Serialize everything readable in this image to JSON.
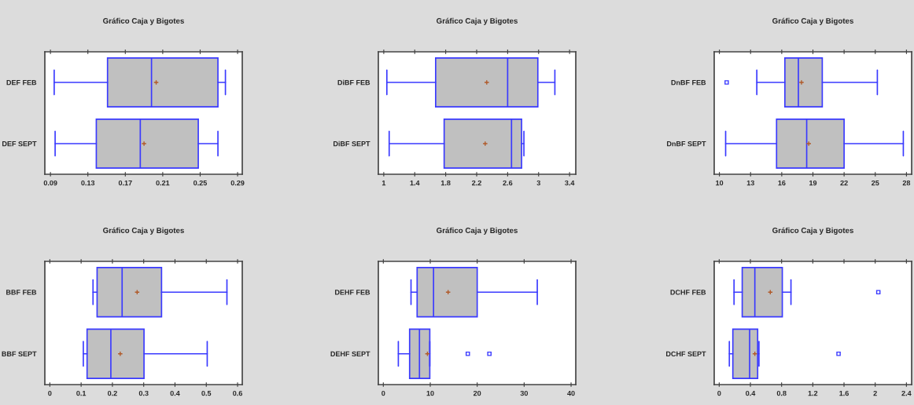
{
  "chart_data": [
    {
      "type": "box",
      "title": "Gráfico Caja y Bigotes",
      "orientation": "horizontal",
      "categories": [
        "DEF FEB",
        "DEF SEPT"
      ],
      "xlim": [
        0.084,
        0.295
      ],
      "xticks": [
        {
          "value": 0.09,
          "label": "0.09"
        },
        {
          "value": 0.13,
          "label": "0.13"
        },
        {
          "value": 0.17,
          "label": "0.17"
        },
        {
          "value": 0.21,
          "label": "0.21"
        },
        {
          "value": 0.25,
          "label": "0.25"
        },
        {
          "value": 0.29,
          "label": "0.29"
        }
      ],
      "series": [
        {
          "color": "#c0c0c0",
          "boxes": [
            {
              "low": 0.094,
              "q1": 0.151,
              "median": 0.198,
              "q3": 0.269,
              "high": 0.277,
              "mean": 0.203
            },
            {
              "low": 0.095,
              "q1": 0.139,
              "median": 0.186,
              "q3": 0.248,
              "high": 0.269,
              "mean": 0.19
            }
          ]
        }
      ]
    },
    {
      "type": "box",
      "title": "Gráfico Caja y Bigotes",
      "orientation": "horizontal",
      "categories": [
        "DiBF FEB",
        "DiBF SEPT"
      ],
      "xlim": [
        0.93,
        3.48
      ],
      "xticks": [
        1,
        1.4,
        1.8,
        2.2,
        2.6,
        3,
        3.4
      ],
      "series": [
        {
          "color": "#c0c0c0",
          "boxes": [
            {
              "low": 1.04,
              "q1": 1.67,
              "median": 2.6,
              "q3": 2.99,
              "high": 3.21,
              "mean": 2.33
            },
            {
              "low": 1.07,
              "q1": 1.78,
              "median": 2.65,
              "q3": 2.78,
              "high": 2.81,
              "mean": 2.31
            }
          ]
        }
      ]
    },
    {
      "type": "box",
      "title": "Gráfico Caja y Bigotes",
      "orientation": "horizontal",
      "categories": [
        "DnBF FEB",
        "DnBF SEPT"
      ],
      "xlim": [
        9.5,
        28.5
      ],
      "xticks": [
        10,
        13,
        16,
        19,
        22,
        25,
        28
      ],
      "series": [
        {
          "color": "#c0c0c0",
          "boxes": [
            {
              "low": 13.6,
              "q1": 16.3,
              "median": 17.6,
              "q3": 19.9,
              "high": 25.2,
              "mean": 17.9,
              "outliers": [
                10.7
              ]
            },
            {
              "low": 10.6,
              "q1": 15.5,
              "median": 18.4,
              "q3": 22.0,
              "high": 27.7,
              "mean": 18.6
            }
          ]
        }
      ]
    },
    {
      "type": "box",
      "title": "Gráfico Caja y Bigotes",
      "orientation": "horizontal",
      "categories": [
        "BBF FEB",
        "BBF SEPT"
      ],
      "xlim": [
        -0.016,
        0.615
      ],
      "xticks": [
        0,
        0.1,
        0.2,
        0.3,
        0.4,
        0.5,
        0.6
      ],
      "series": [
        {
          "color": "#c0c0c0",
          "boxes": [
            {
              "low": 0.138,
              "q1": 0.151,
              "median": 0.231,
              "q3": 0.357,
              "high": 0.566,
              "mean": 0.279
            },
            {
              "low": 0.107,
              "q1": 0.119,
              "median": 0.195,
              "q3": 0.301,
              "high": 0.503,
              "mean": 0.225
            }
          ]
        }
      ]
    },
    {
      "type": "box",
      "title": "Gráfico Caja y Bigotes",
      "orientation": "horizontal",
      "categories": [
        "DEHF FEB",
        "DEHF SEPT"
      ],
      "xlim": [
        -1.06,
        41
      ],
      "xticks": [
        0,
        10,
        20,
        30,
        40
      ],
      "series": [
        {
          "color": "#c0c0c0",
          "boxes": [
            {
              "low": 5.9,
              "q1": 7.2,
              "median": 10.7,
              "q3": 20.0,
              "high": 32.8,
              "mean": 13.8
            },
            {
              "low": 3.2,
              "q1": 5.6,
              "median": 7.7,
              "q3": 9.9,
              "high": 9.9,
              "mean": 9.4,
              "outliers": [
                18.0,
                22.6
              ]
            }
          ]
        }
      ]
    },
    {
      "type": "box",
      "title": "Gráfico Caja y Bigotes",
      "orientation": "horizontal",
      "categories": [
        "DCHF FEB",
        "DCHF SEPT"
      ],
      "xlim": [
        -0.064,
        2.467
      ],
      "xticks": [
        0,
        0.4,
        0.8,
        1.2,
        1.6,
        2,
        2.4
      ],
      "series": [
        {
          "color": "#c0c0c0",
          "boxes": [
            {
              "low": 0.19,
              "q1": 0.295,
              "median": 0.457,
              "q3": 0.809,
              "high": 0.92,
              "mean": 0.655,
              "outliers": [
                2.04
              ]
            },
            {
              "low": 0.13,
              "q1": 0.175,
              "median": 0.39,
              "q3": 0.493,
              "high": 0.51,
              "mean": 0.457,
              "outliers": [
                1.53
              ]
            }
          ]
        }
      ]
    }
  ]
}
